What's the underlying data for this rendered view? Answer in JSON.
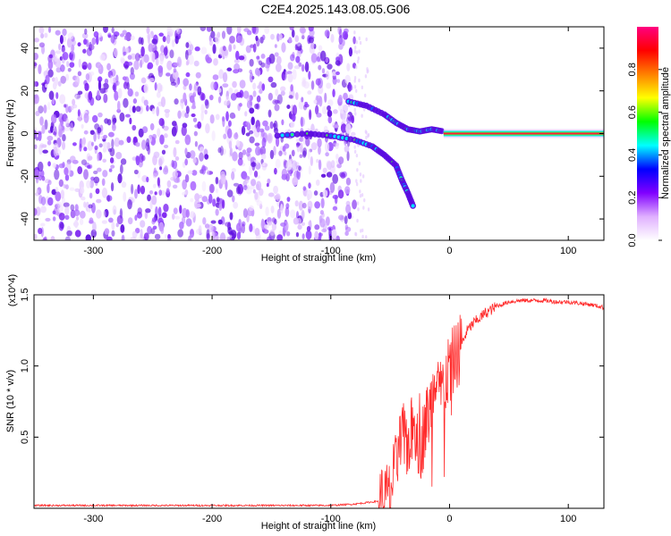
{
  "title": "C2E4.2025.143.08.05.G06",
  "chart_data": [
    {
      "type": "heatmap",
      "title": "C2E4.2025.143.08.05.G06",
      "xlabel": "Height of straight line (km)",
      "ylabel": "Frequency (Hz)",
      "xlim": [
        -350,
        130
      ],
      "ylim": [
        -50,
        50
      ],
      "xticks": [
        -300,
        -200,
        -100,
        0,
        100
      ],
      "yticks": [
        -40,
        -20,
        0,
        20,
        40
      ],
      "colorbar": {
        "label": "Normalized spectral amplitude",
        "range": [
          0,
          1
        ],
        "ticks": [
          "0.0",
          "0.2",
          "0.4",
          "0.6",
          "0.8"
        ],
        "colors": [
          "#ffffff",
          "#e0b0ff",
          "#8000ff",
          "#0000ff",
          "#00ffff",
          "#00ff00",
          "#ffff00",
          "#ff8000",
          "#ff0000",
          "#ff0080"
        ]
      },
      "features": {
        "noise_region_x": [
          -350,
          -80
        ],
        "carrier_line": {
          "x_start": -5,
          "x_end": 130,
          "frequency": 0
        },
        "upper_branch": [
          [
            -85,
            15
          ],
          [
            -70,
            13
          ],
          [
            -55,
            9
          ],
          [
            -45,
            5
          ],
          [
            -35,
            2
          ],
          [
            -25,
            1
          ],
          [
            -15,
            2
          ],
          [
            -5,
            1
          ]
        ],
        "lower_branch": [
          [
            -145,
            -1
          ],
          [
            -120,
            0
          ],
          [
            -100,
            -1
          ],
          [
            -80,
            -3
          ],
          [
            -65,
            -6
          ],
          [
            -55,
            -10
          ],
          [
            -45,
            -15
          ],
          [
            -40,
            -22
          ],
          [
            -35,
            -28
          ],
          [
            -30,
            -35
          ]
        ]
      }
    },
    {
      "type": "line",
      "xlabel": "Height of straight line (km)",
      "ylabel": "SNR (10 * v/v)",
      "y_multiplier": "(x10^4)",
      "xlim": [
        -350,
        130
      ],
      "ylim": [
        0,
        1.5
      ],
      "xticks": [
        -300,
        -200,
        -100,
        0,
        100
      ],
      "yticks": [
        "0.5",
        "1.0",
        "1.5"
      ],
      "color": "#ff2a2a",
      "series": [
        {
          "x": [
            -350,
            -300,
            -250,
            -200,
            -150,
            -100,
            -80,
            -60,
            -50,
            -45,
            -40,
            -35,
            -30,
            -25,
            -20,
            -15,
            -10,
            -5,
            0,
            5,
            10,
            15,
            20,
            30,
            40,
            50,
            60,
            70,
            80,
            90,
            100,
            110,
            120,
            130
          ],
          "y": [
            0.02,
            0.02,
            0.02,
            0.02,
            0.02,
            0.02,
            0.03,
            0.05,
            0.1,
            0.3,
            0.5,
            0.45,
            0.6,
            0.4,
            0.6,
            0.75,
            0.8,
            0.85,
            1.0,
            1.05,
            1.15,
            1.25,
            1.3,
            1.37,
            1.42,
            1.45,
            1.46,
            1.46,
            1.46,
            1.45,
            1.45,
            1.44,
            1.43,
            1.41
          ]
        }
      ]
    }
  ]
}
